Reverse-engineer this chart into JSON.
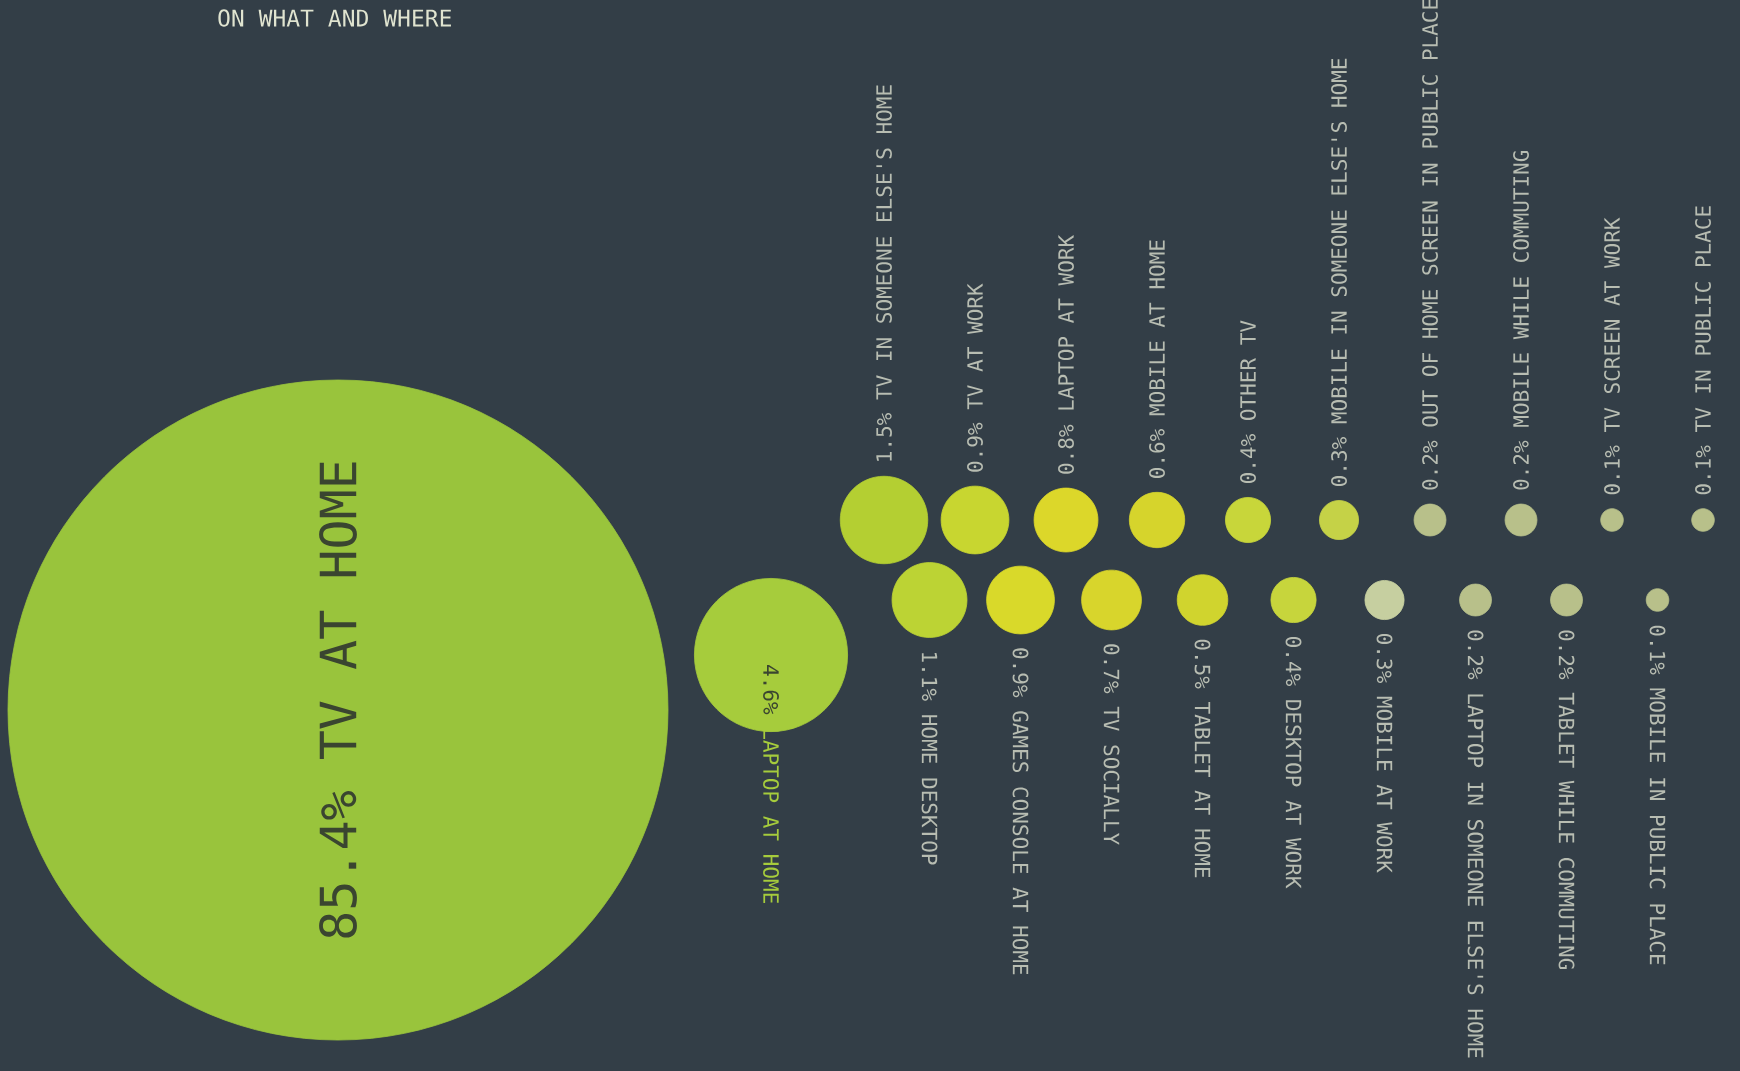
{
  "chart_data": {
    "type": "other",
    "title": "ON WHAT AND WHERE",
    "categories": [
      "TV AT HOME",
      "LAPTOP AT HOME",
      "TV IN SOMEONE ELSE'S HOME",
      "HOME DESKTOP",
      "TV AT WORK",
      "GAMES CONSOLE AT HOME",
      "LAPTOP AT WORK",
      "TV SOCIALLY",
      "MOBILE AT HOME",
      "TABLET AT HOME",
      "OTHER TV",
      "DESKTOP AT WORK",
      "MOBILE IN SOMEONE ELSE'S HOME",
      "MOBILE AT WORK",
      "OUT OF HOME SCREEN IN PUBLIC PLACE",
      "LAPTOP IN SOMEONE ELSE'S HOME",
      "MOBILE WHILE COMMUTING",
      "TABLET WHILE COMMUTING",
      "TV SCREEN AT WORK",
      "MOBILE IN PUBLIC PLACE",
      "TV IN PUBLIC PLACE"
    ],
    "values": [
      85.4,
      4.6,
      1.5,
      1.1,
      0.9,
      0.9,
      0.8,
      0.7,
      0.6,
      0.5,
      0.4,
      0.4,
      0.3,
      0.3,
      0.2,
      0.2,
      0.2,
      0.2,
      0.1,
      0.1,
      0.1
    ],
    "value_labels": [
      "85.4%",
      "4.6%",
      "1.5%",
      "1.1%",
      "0.9%",
      "0.9%",
      "0.8%",
      "0.7%",
      "0.6%",
      "0.5%",
      "0.4%",
      "0.4%",
      "0.3%",
      "0.3%",
      "0.2%",
      "0.2%",
      "0.2%",
      "0.2%",
      "0.1%",
      "0.1%",
      "0.1%"
    ],
    "colors": [
      "#99c43c",
      "#a6cc3c",
      "#b4cf32",
      "#bcd334",
      "#c8d630",
      "#d9d92a",
      "#dcd72a",
      "#d8d52c",
      "#d6d42c",
      "#d0d42e",
      "#c8d63a",
      "#c7d53c",
      "#c5d247",
      "#c6cfa0",
      "#b8c08a",
      "#b8c08a",
      "#b8c08a",
      "#b8c08a",
      "#b8c08a",
      "#b8c08a",
      "#b8c08a"
    ]
  }
}
